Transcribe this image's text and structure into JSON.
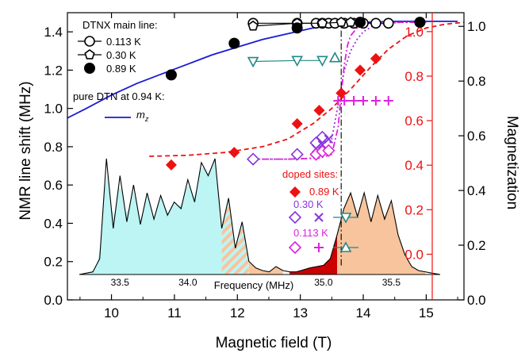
{
  "chart_data": {
    "type": "scatter",
    "axes": {
      "x_bottom": {
        "label": "Magnetic field  (T)",
        "range": [
          9.3,
          15.6
        ],
        "ticks": [
          "10",
          "11",
          "12",
          "13",
          "14",
          "15"
        ],
        "tick_values": [
          10,
          11,
          12,
          13,
          14,
          15
        ]
      },
      "y_left": {
        "label": "NMR line shift  (MHz)",
        "range": [
          0.0,
          1.5
        ],
        "ticks": [
          "0.0",
          "0.2",
          "0.4",
          "0.6",
          "0.8",
          "1.0",
          "1.2",
          "1.4"
        ],
        "tick_values": [
          0,
          0.2,
          0.4,
          0.6,
          0.8,
          1.0,
          1.2,
          1.4
        ],
        "color": "#000000"
      },
      "y_right_magnetization": {
        "label": "Magnetization",
        "range": [
          0.0,
          1.05
        ],
        "ticks": [
          "0.0",
          "0.2",
          "0.4",
          "0.6",
          "0.8",
          "1.0"
        ],
        "tick_values": [
          0,
          0.2,
          0.4,
          0.6,
          0.8,
          1.0
        ],
        "color": "#000000"
      },
      "y_right_inner_red": {
        "ticks": [
          "0.0",
          "0.2",
          "0.4",
          "0.6",
          "0.8",
          "1.0"
        ],
        "tick_values": [
          0,
          0.2,
          0.4,
          0.6,
          0.8,
          1.0
        ],
        "range": [
          -0.205,
          1.085
        ],
        "color": "#ee1111"
      },
      "inset_frequency": {
        "label": "Frequency  (MHz)",
        "ticks": [
          "33.5",
          "34.0",
          "35.0",
          "35.5"
        ],
        "tick_values": [
          33.5,
          34.0,
          35.0,
          35.5
        ],
        "range": [
          33.2,
          35.86
        ]
      }
    },
    "legend_main": {
      "title": "DTNX main line:",
      "entries": [
        {
          "label": "0.113 K",
          "marker": "open-circle",
          "color": "#000000"
        },
        {
          "label": "0.30 K",
          "marker": "open-pentagon",
          "color": "#000000"
        },
        {
          "label": "0.89 K",
          "marker": "filled-circle",
          "color": "#000000"
        }
      ]
    },
    "legend_pure": {
      "title": "pure DTN at 0.94 K:",
      "entry": "m",
      "entry_subscript": "z",
      "color": "#1a1ad6"
    },
    "legend_doped": {
      "title": "doped sites:",
      "title_color": "#ee1111",
      "rows": [
        {
          "label": "0.89 K",
          "color": "#ee1111",
          "markers": [
            "filled-diamond"
          ]
        },
        {
          "label": "0.30 K",
          "color": "#8833dd",
          "markers": [
            "open-diamond",
            "cross",
            "down-triangle"
          ]
        },
        {
          "label": "0.113 K",
          "color": "#dd22dd",
          "markers": [
            "open-diamond",
            "plus",
            "up-triangle"
          ]
        }
      ],
      "triangle_color": "#228888"
    },
    "series": [
      {
        "name": "0.113 K",
        "marker": "open-circle",
        "color": "#000000",
        "connected": true,
        "x": [
          12.25,
          12.95,
          13.25,
          13.35,
          13.45,
          13.55,
          13.7,
          13.85,
          14.0,
          14.2,
          14.4
        ],
        "y": [
          1.445,
          1.445,
          1.445,
          1.445,
          1.445,
          1.445,
          1.445,
          1.445,
          1.445,
          1.445,
          1.445
        ]
      },
      {
        "name": "0.30 K",
        "marker": "open-pentagon",
        "color": "#000000",
        "connected": true,
        "x": [
          12.25,
          12.95,
          13.35,
          13.65,
          13.8
        ],
        "y": [
          1.43,
          1.445,
          1.445,
          1.45,
          1.45
        ]
      },
      {
        "name": "0.89 K",
        "marker": "filled-circle",
        "color": "#000000",
        "connected": false,
        "x": [
          10.95,
          11.95,
          12.95,
          13.95,
          14.9
        ],
        "y": [
          1.175,
          1.34,
          1.42,
          1.45,
          1.45
        ]
      },
      {
        "name": "teal down-triangles",
        "marker": "down-triangle",
        "color": "#228888",
        "connected": true,
        "x": [
          12.25,
          12.95,
          13.35
        ],
        "y": [
          1.245,
          1.25,
          1.25
        ]
      },
      {
        "name": "teal up-triangle",
        "marker": "up-triangle",
        "color": "#228888",
        "connected": false,
        "x": [
          13.55
        ],
        "y": [
          1.265
        ]
      },
      {
        "name": "0.89 K doped",
        "marker": "filled-diamond",
        "color": "#ee1111",
        "connected": false,
        "x": [
          10.95,
          11.95,
          12.95,
          13.3,
          13.65,
          13.95,
          14.2
        ],
        "y": [
          0.705,
          0.77,
          0.92,
          0.99,
          1.08,
          1.2,
          1.26
        ]
      },
      {
        "name": "0.30 K open diamonds",
        "marker": "open-diamond",
        "color": "#8833dd",
        "connected": false,
        "x": [
          12.25,
          12.95,
          13.25,
          13.35
        ],
        "y": [
          0.735,
          0.76,
          0.82,
          0.85
        ]
      },
      {
        "name": "0.30 K crosses",
        "marker": "cross",
        "color": "#8833dd",
        "connected": false,
        "x": [
          13.25,
          13.35,
          13.45
        ],
        "y": [
          0.79,
          0.81,
          0.84
        ]
      },
      {
        "name": "0.113 K open diamonds",
        "marker": "open-diamond",
        "color": "#dd22dd",
        "connected": false,
        "x": [
          13.25,
          13.35,
          13.45
        ],
        "y": [
          0.76,
          0.775,
          0.78
        ]
      },
      {
        "name": "0.113 K plus",
        "marker": "plus",
        "color": "#dd22dd",
        "connected": false,
        "x": [
          13.6,
          13.7,
          13.85,
          14.0,
          14.2,
          14.4
        ],
        "y": [
          1.04,
          1.04,
          1.04,
          1.04,
          1.04,
          1.04
        ]
      }
    ],
    "curves": [
      {
        "name": "m_z pure DTN",
        "style": "solid",
        "color": "#1a1ad6",
        "x": [
          9.3,
          9.6,
          10.0,
          10.4,
          10.8,
          11.2,
          11.6,
          12.0,
          12.4,
          12.8,
          13.2,
          13.6,
          14.0,
          14.5,
          15.0,
          15.5
        ],
        "y": [
          0.95,
          1.0,
          1.07,
          1.13,
          1.18,
          1.23,
          1.28,
          1.32,
          1.36,
          1.39,
          1.42,
          1.44,
          1.45,
          1.455,
          1.455,
          1.455
        ]
      },
      {
        "name": "0.89 K fit",
        "style": "dashed",
        "color": "#ee1111",
        "x": [
          10.6,
          11.2,
          11.8,
          12.4,
          12.8,
          13.2,
          13.5,
          13.8,
          14.1,
          14.4,
          14.7,
          15.0,
          15.3,
          15.6
        ],
        "y": [
          0.75,
          0.755,
          0.77,
          0.8,
          0.84,
          0.92,
          1.0,
          1.1,
          1.21,
          1.31,
          1.38,
          1.42,
          1.44,
          1.45
        ]
      },
      {
        "name": "0.30 K fit",
        "style": "dotted",
        "color": "#9933dd",
        "x": [
          12.2,
          12.8,
          13.2,
          13.4,
          13.5,
          13.6,
          13.7,
          13.8,
          13.9,
          14.0,
          14.2,
          14.6,
          15.0
        ],
        "y": [
          0.735,
          0.735,
          0.74,
          0.77,
          0.84,
          1.02,
          1.2,
          1.3,
          1.36,
          1.4,
          1.44,
          1.45,
          1.45
        ]
      },
      {
        "name": "0.113 K fit",
        "style": "dashdot",
        "color": "#dd22dd",
        "x": [
          12.2,
          12.8,
          13.3,
          13.5,
          13.6,
          13.65,
          13.7,
          13.75,
          13.8,
          13.9,
          14.0,
          14.2,
          14.6,
          15.0
        ],
        "y": [
          0.735,
          0.735,
          0.74,
          0.76,
          0.9,
          1.08,
          1.23,
          1.33,
          1.38,
          1.42,
          1.44,
          1.45,
          1.45,
          1.45
        ]
      },
      {
        "name": "critical field line",
        "style": "dashdot",
        "color": "#000000",
        "x": [
          13.65,
          13.65
        ],
        "y": [
          0.18,
          1.45
        ]
      }
    ],
    "inset_spectrum": {
      "x_MHz": [
        33.2,
        33.3,
        33.35,
        33.4,
        33.45,
        33.5,
        33.55,
        33.6,
        33.65,
        33.7,
        33.75,
        33.8,
        33.85,
        33.9,
        33.95,
        34.0,
        34.05,
        34.1,
        34.15,
        34.2,
        34.25,
        34.3,
        34.35,
        34.4,
        34.45,
        34.5,
        34.55,
        34.6,
        34.65,
        34.7,
        34.75,
        34.8,
        34.9,
        35.0,
        35.05,
        35.1,
        35.15,
        35.2,
        35.25,
        35.3,
        35.35,
        35.4,
        35.45,
        35.5,
        35.55,
        35.6,
        35.65,
        35.7,
        35.8,
        35.86
      ],
      "y_rel": [
        0.0,
        0.02,
        0.12,
        0.88,
        0.35,
        0.75,
        0.4,
        0.68,
        0.38,
        0.62,
        0.42,
        0.6,
        0.45,
        0.55,
        0.5,
        0.72,
        0.55,
        0.85,
        0.75,
        0.88,
        0.35,
        0.58,
        0.2,
        0.4,
        0.1,
        0.05,
        0.03,
        0.02,
        0.06,
        0.03,
        0.02,
        0.02,
        0.05,
        0.07,
        0.12,
        0.3,
        0.5,
        0.62,
        0.44,
        0.62,
        0.4,
        0.6,
        0.42,
        0.56,
        0.3,
        0.15,
        0.06,
        0.03,
        0.01,
        0.0
      ],
      "regions": [
        {
          "name": "cyan",
          "color": "#bdf4f4",
          "from": 33.2,
          "to": 34.25
        },
        {
          "name": "hatched",
          "color": "#f7c49d",
          "from": 34.25,
          "to": 34.45
        },
        {
          "name": "orange-left",
          "color": "#f7c49d",
          "from": 34.45,
          "to": 34.7
        },
        {
          "name": "red-small",
          "color": "#cc0000",
          "from": 34.75,
          "to": 35.1
        },
        {
          "name": "orange-right",
          "color": "#f7c49d",
          "from": 35.1,
          "to": 35.75
        }
      ]
    }
  }
}
